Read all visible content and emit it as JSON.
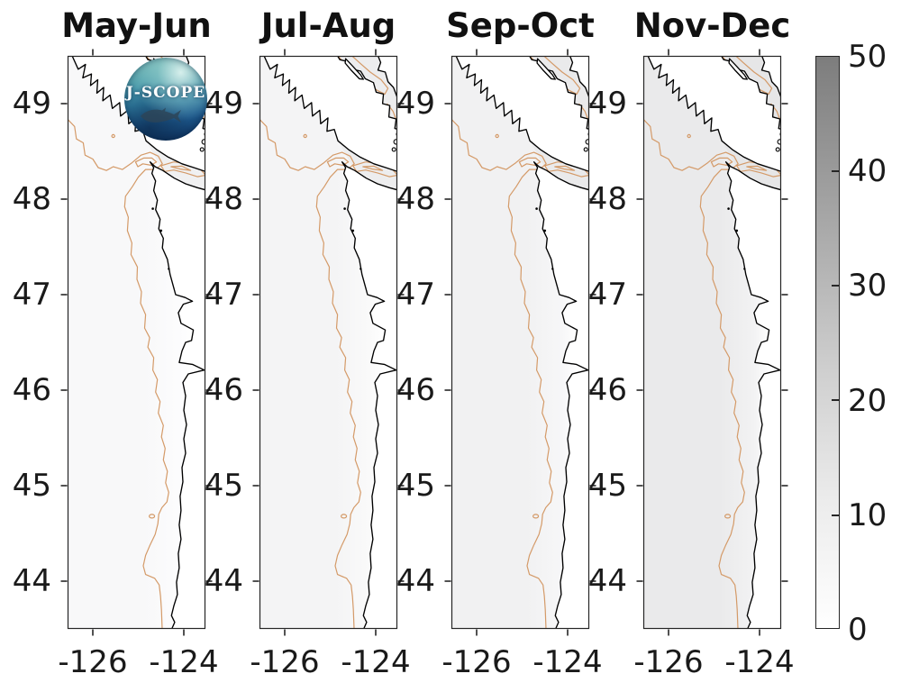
{
  "figure": {
    "panels": [
      {
        "title": "May-Jun",
        "ocean_deep": "#f8f8f9",
        "ocean_shelf": "#fcfcfd",
        "inland": "#f0f0f1"
      },
      {
        "title": "Jul-Aug",
        "ocean_deep": "#f4f4f5",
        "ocean_shelf": "#fafafa",
        "inland": "#ededee"
      },
      {
        "title": "Sep-Oct",
        "ocean_deep": "#f1f1f2",
        "ocean_shelf": "#f7f7f8",
        "inland": "#eaeaeb"
      },
      {
        "title": "Nov-Dec",
        "ocean_deep": "#eaeaeb",
        "ocean_shelf": "#f2f2f3",
        "inland": "#e6e6e7"
      }
    ],
    "lat_ticks": [
      "49",
      "48",
      "47",
      "46",
      "45",
      "44"
    ],
    "lon_ticks": [
      "-126",
      "-124"
    ],
    "colorbar": {
      "tick_labels": [
        "0",
        "10",
        "20",
        "30",
        "40",
        "50"
      ],
      "min": 0,
      "max": 50,
      "top_color": "#7d7d7d",
      "bottom_color": "#ffffff"
    },
    "logo": {
      "text": "J-SCOPE"
    },
    "colors": {
      "contour_200m": "#d49a68",
      "coastline": "#000000",
      "axis": "#262626",
      "text": "#1a1a1a"
    }
  },
  "chart_data": {
    "type": "heatmap",
    "layout": "four-panel coastal map series sharing one vertical grayscale colorbar",
    "panels": [
      "May-Jun",
      "Jul-Aug",
      "Sep-Oct",
      "Nov-Dec"
    ],
    "x_axis": {
      "ticks": [
        -126,
        -124
      ],
      "range": [
        -126.55,
        -123.5
      ]
    },
    "y_axis": {
      "ticks": [
        49,
        48,
        47,
        46,
        45,
        44
      ],
      "range": [
        43.5,
        49.5
      ]
    },
    "colorbar": {
      "range": [
        0,
        50
      ],
      "ticks": [
        0,
        10,
        20,
        30,
        40,
        50
      ],
      "colormap": "white-to-gray",
      "position": "right"
    },
    "region": "Pacific Northwest coast: Vancouver Island, Strait of Juan de Fuca, Washington and Oregon coast",
    "overlays": [
      "black coastline",
      "tan shelf-break (200 m) isobath contour",
      "J-SCOPE circular logo on first panel"
    ],
    "field_values": "mapped values are near 0-8 over most of the ocean, shading slightly darker from May-Jun to Nov-Dec"
  }
}
